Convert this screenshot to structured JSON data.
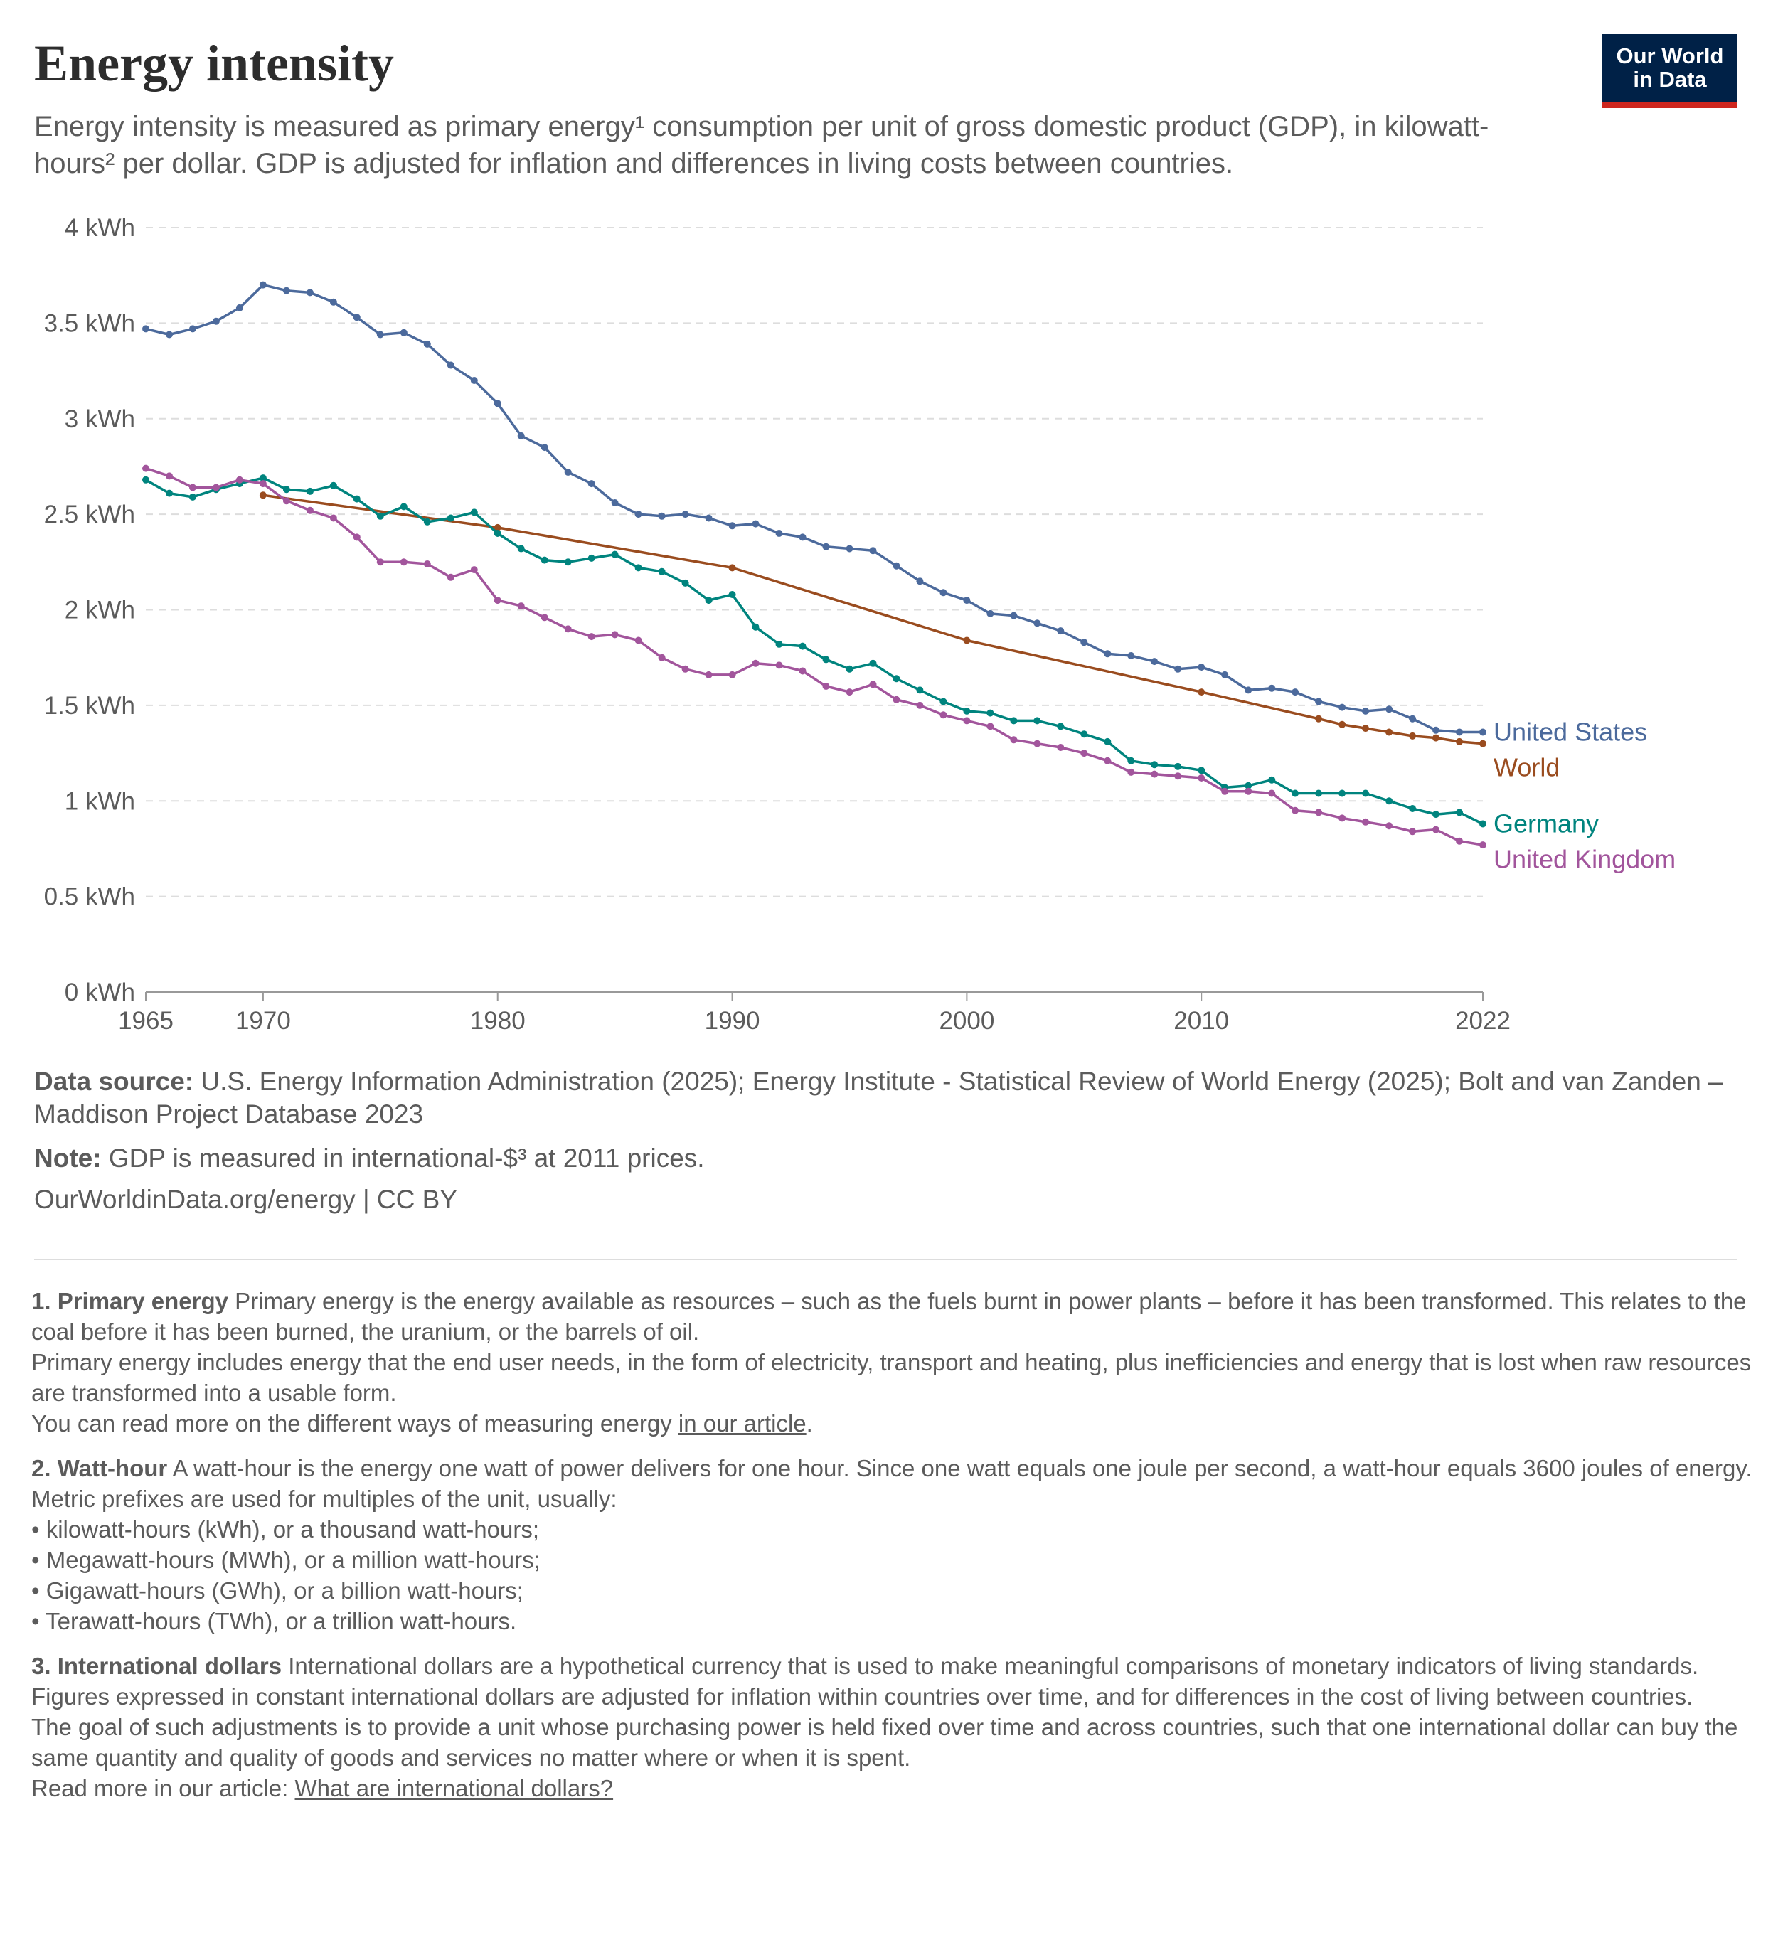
{
  "header": {
    "title": "Energy intensity",
    "subtitle": "Energy intensity is measured as primary energy¹ consumption per unit of gross domestic product (GDP), in kilowatt-hours² per dollar. GDP is adjusted for inflation and differences in living costs between countries.",
    "logo_line1": "Our World",
    "logo_line2": "in Data"
  },
  "colors": {
    "united_states": "#4c6a9c",
    "world": "#9a4c1f",
    "germany": "#00847e",
    "united_kingdom": "#a2559c",
    "logo_bg": "#002147",
    "logo_accent": "#ce261e"
  },
  "chart_data": {
    "type": "line",
    "title": "Energy intensity",
    "ylabel": "kWh per dollar",
    "ylim": [
      0,
      4
    ],
    "xlim": [
      1965,
      2022
    ],
    "y_ticks": [
      {
        "value": 0,
        "label": "0 kWh"
      },
      {
        "value": 0.5,
        "label": "0.5 kWh"
      },
      {
        "value": 1,
        "label": "1 kWh"
      },
      {
        "value": 1.5,
        "label": "1.5 kWh"
      },
      {
        "value": 2,
        "label": "2 kWh"
      },
      {
        "value": 2.5,
        "label": "2.5 kWh"
      },
      {
        "value": 3,
        "label": "3 kWh"
      },
      {
        "value": 3.5,
        "label": "3.5 kWh"
      },
      {
        "value": 4,
        "label": "4 kWh"
      }
    ],
    "x_ticks": [
      {
        "value": 1965,
        "label": "1965"
      },
      {
        "value": 1970,
        "label": "1970"
      },
      {
        "value": 1980,
        "label": "1980"
      },
      {
        "value": 1990,
        "label": "1990"
      },
      {
        "value": 2000,
        "label": "2000"
      },
      {
        "value": 2010,
        "label": "2010"
      },
      {
        "value": 2022,
        "label": "2022"
      }
    ],
    "grid": "horizontal dashed",
    "series": [
      {
        "key": "united_states",
        "name": "United States",
        "x": [
          1965,
          1966,
          1967,
          1968,
          1969,
          1970,
          1971,
          1972,
          1973,
          1974,
          1975,
          1976,
          1977,
          1978,
          1979,
          1980,
          1981,
          1982,
          1983,
          1984,
          1985,
          1986,
          1987,
          1988,
          1989,
          1990,
          1991,
          1992,
          1993,
          1994,
          1995,
          1996,
          1997,
          1998,
          1999,
          2000,
          2001,
          2002,
          2003,
          2004,
          2005,
          2006,
          2007,
          2008,
          2009,
          2010,
          2011,
          2012,
          2013,
          2014,
          2015,
          2016,
          2017,
          2018,
          2019,
          2020,
          2021,
          2022
        ],
        "values": [
          3.47,
          3.44,
          3.47,
          3.51,
          3.58,
          3.7,
          3.67,
          3.66,
          3.61,
          3.53,
          3.44,
          3.45,
          3.39,
          3.28,
          3.2,
          3.08,
          2.91,
          2.85,
          2.72,
          2.66,
          2.56,
          2.5,
          2.49,
          2.5,
          2.48,
          2.44,
          2.45,
          2.4,
          2.38,
          2.33,
          2.32,
          2.31,
          2.23,
          2.15,
          2.09,
          2.05,
          1.98,
          1.97,
          1.93,
          1.89,
          1.83,
          1.77,
          1.76,
          1.73,
          1.69,
          1.7,
          1.66,
          1.58,
          1.59,
          1.57,
          1.52,
          1.49,
          1.47,
          1.48,
          1.43,
          1.37,
          1.36,
          1.36
        ]
      },
      {
        "key": "world",
        "name": "World",
        "x": [
          1970,
          1980,
          1990,
          2000,
          2010,
          2015,
          2016,
          2017,
          2018,
          2019,
          2020,
          2021,
          2022
        ],
        "values": [
          2.6,
          2.43,
          2.22,
          1.84,
          1.57,
          1.43,
          1.4,
          1.38,
          1.36,
          1.34,
          1.33,
          1.31,
          1.3
        ]
      },
      {
        "key": "germany",
        "name": "Germany",
        "x": [
          1965,
          1966,
          1967,
          1968,
          1969,
          1970,
          1971,
          1972,
          1973,
          1974,
          1975,
          1976,
          1977,
          1978,
          1979,
          1980,
          1981,
          1982,
          1983,
          1984,
          1985,
          1986,
          1987,
          1988,
          1989,
          1990,
          1991,
          1992,
          1993,
          1994,
          1995,
          1996,
          1997,
          1998,
          1999,
          2000,
          2001,
          2002,
          2003,
          2004,
          2005,
          2006,
          2007,
          2008,
          2009,
          2010,
          2011,
          2012,
          2013,
          2014,
          2015,
          2016,
          2017,
          2018,
          2019,
          2020,
          2021,
          2022
        ],
        "values": [
          2.68,
          2.61,
          2.59,
          2.63,
          2.66,
          2.69,
          2.63,
          2.62,
          2.65,
          2.58,
          2.49,
          2.54,
          2.46,
          2.48,
          2.51,
          2.4,
          2.32,
          2.26,
          2.25,
          2.27,
          2.29,
          2.22,
          2.2,
          2.14,
          2.05,
          2.08,
          1.91,
          1.82,
          1.81,
          1.74,
          1.69,
          1.72,
          1.64,
          1.58,
          1.52,
          1.47,
          1.46,
          1.42,
          1.42,
          1.39,
          1.35,
          1.31,
          1.21,
          1.19,
          1.18,
          1.16,
          1.07,
          1.08,
          1.11,
          1.04,
          1.04,
          1.04,
          1.04,
          1.0,
          0.96,
          0.93,
          0.94,
          0.88
        ]
      },
      {
        "key": "united_kingdom",
        "name": "United Kingdom",
        "x": [
          1965,
          1966,
          1967,
          1968,
          1969,
          1970,
          1971,
          1972,
          1973,
          1974,
          1975,
          1976,
          1977,
          1978,
          1979,
          1980,
          1981,
          1982,
          1983,
          1984,
          1985,
          1986,
          1987,
          1988,
          1989,
          1990,
          1991,
          1992,
          1993,
          1994,
          1995,
          1996,
          1997,
          1998,
          1999,
          2000,
          2001,
          2002,
          2003,
          2004,
          2005,
          2006,
          2007,
          2008,
          2009,
          2010,
          2011,
          2012,
          2013,
          2014,
          2015,
          2016,
          2017,
          2018,
          2019,
          2020,
          2021,
          2022
        ],
        "values": [
          2.74,
          2.7,
          2.64,
          2.64,
          2.68,
          2.66,
          2.57,
          2.52,
          2.48,
          2.38,
          2.25,
          2.25,
          2.24,
          2.17,
          2.21,
          2.05,
          2.02,
          1.96,
          1.9,
          1.86,
          1.87,
          1.84,
          1.75,
          1.69,
          1.66,
          1.66,
          1.72,
          1.71,
          1.68,
          1.6,
          1.57,
          1.61,
          1.53,
          1.5,
          1.45,
          1.42,
          1.39,
          1.32,
          1.3,
          1.28,
          1.25,
          1.21,
          1.15,
          1.14,
          1.13,
          1.12,
          1.05,
          1.05,
          1.04,
          0.95,
          0.94,
          0.91,
          0.89,
          0.87,
          0.84,
          0.85,
          0.79,
          0.77
        ]
      }
    ]
  },
  "footer": {
    "source_label": "Data source:",
    "source_text": "U.S. Energy Information Administration (2025); Energy Institute - Statistical Review of World Energy (2025); Bolt and van Zanden – Maddison Project Database 2023",
    "note_label": "Note:",
    "note_text": "GDP is measured in international-$³ at 2011 prices.",
    "url_text": "OurWorldinData.org/energy | CC BY"
  },
  "notes": {
    "n1_title": "1. Primary energy",
    "n1_p1": "Primary energy is the energy available as resources – such as the fuels burnt in power plants – before it has been transformed. This relates to the coal before it has been burned, the uranium, or the barrels of oil.",
    "n1_p2": "Primary energy includes energy that the end user needs, in the form of electricity, transport and heating, plus inefficiencies and energy that is lost when raw resources are transformed into a usable form.",
    "n1_p3_before": "You can read more on the different ways of measuring energy ",
    "n1_p3_link": "in our article",
    "n1_p3_after": ".",
    "n2_title": "2. Watt-hour",
    "n2_p1": "A watt-hour is the energy one watt of power delivers for one hour. Since one watt equals one joule per second, a watt-hour equals 3600 joules of energy.",
    "n2_p2": "Metric prefixes are used for multiples of the unit, usually:",
    "n2_b1": "• kilowatt-hours (kWh), or a thousand watt-hours;",
    "n2_b2": "• Megawatt-hours (MWh), or a million watt-hours;",
    "n2_b3": "• Gigawatt-hours (GWh), or a billion watt-hours;",
    "n2_b4": "• Terawatt-hours (TWh), or a trillion watt-hours.",
    "n3_title": "3. International dollars",
    "n3_p1": "International dollars are a hypothetical currency that is used to make meaningful comparisons of monetary indicators of living standards.",
    "n3_p2": "Figures expressed in constant international dollars are adjusted for inflation within countries over time, and for differences in the cost of living between countries.",
    "n3_p3": "The goal of such adjustments is to provide a unit whose purchasing power is held fixed over time and across countries, such that one international dollar can buy the same quantity and quality of goods and services no matter where or when it is spent.",
    "n3_p4_before": "Read more in our article: ",
    "n3_p4_link": "What are international dollars?"
  }
}
